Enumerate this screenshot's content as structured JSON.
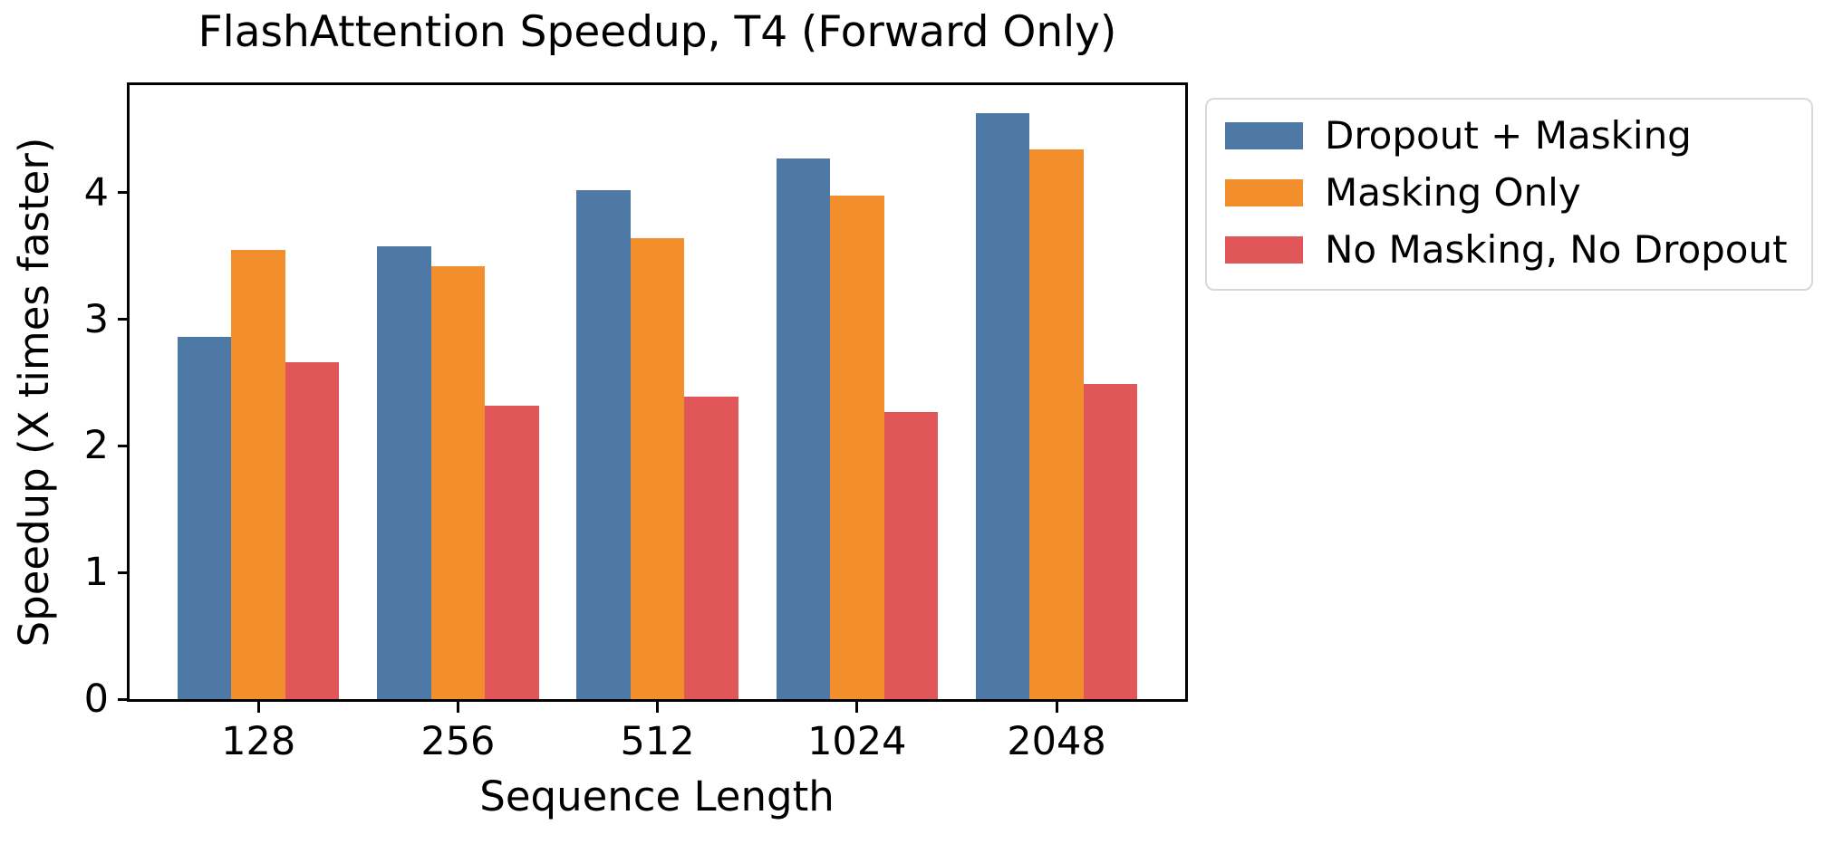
{
  "chart_data": {
    "type": "bar",
    "title": "FlashAttention Speedup, T4 (Forward Only)",
    "xlabel": "Sequence Length",
    "ylabel": "Speedup (X times faster)",
    "categories": [
      "128",
      "256",
      "512",
      "1024",
      "2048"
    ],
    "series": [
      {
        "name": "Dropout + Masking",
        "color": "#4E79A7",
        "values": [
          2.86,
          3.58,
          4.02,
          4.27,
          4.63
        ]
      },
      {
        "name": "Masking Only",
        "color": "#F28E2B",
        "values": [
          3.55,
          3.42,
          3.64,
          3.98,
          4.34
        ]
      },
      {
        "name": "No Masking, No Dropout",
        "color": "#E15759",
        "values": [
          2.66,
          2.32,
          2.39,
          2.27,
          2.49
        ]
      }
    ],
    "yticks": [
      0,
      1,
      2,
      3,
      4
    ],
    "ylim": [
      0,
      4.85
    ],
    "grid": false,
    "legend_position": "outside-right"
  },
  "colors": {
    "background": "#ffffff",
    "spine": "#000000",
    "text": "#000000",
    "legend_border": "#d8d8d8"
  }
}
